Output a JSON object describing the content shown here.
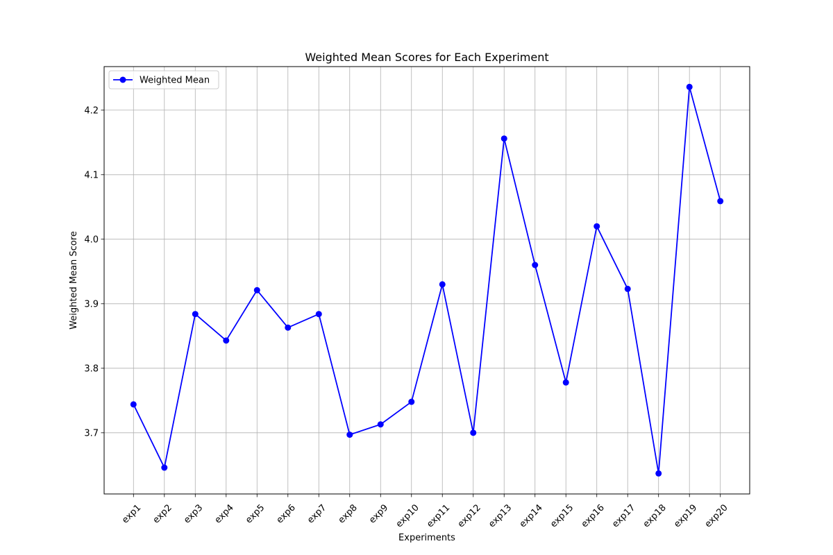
{
  "chart_data": {
    "type": "line",
    "title": "Weighted Mean Scores for Each Experiment",
    "xlabel": "Experiments",
    "ylabel": "Weighted Mean Score",
    "categories": [
      "exp1",
      "exp2",
      "exp3",
      "exp4",
      "exp5",
      "exp6",
      "exp7",
      "exp8",
      "exp9",
      "exp10",
      "exp11",
      "exp12",
      "exp13",
      "exp14",
      "exp15",
      "exp16",
      "exp17",
      "exp18",
      "exp19",
      "exp20"
    ],
    "series": [
      {
        "name": "Weighted Mean",
        "color": "#0000ff",
        "marker": "circle",
        "values": [
          3.744,
          3.646,
          3.884,
          3.843,
          3.921,
          3.863,
          3.884,
          3.697,
          3.713,
          3.748,
          3.93,
          3.7,
          4.156,
          3.96,
          3.778,
          4.02,
          3.923,
          3.637,
          4.236,
          4.059
        ]
      }
    ],
    "ylim": [
      3.6052,
      4.2675
    ],
    "yticks": [
      3.7,
      3.8,
      3.9,
      4.0,
      4.1,
      4.2
    ],
    "ytick_labels": [
      "3.7",
      "3.8",
      "3.9",
      "4.0",
      "4.1",
      "4.2"
    ],
    "grid": true,
    "legend": {
      "position": "top-left",
      "entries": [
        "Weighted Mean"
      ]
    },
    "xtick_rotation_deg": 45
  }
}
